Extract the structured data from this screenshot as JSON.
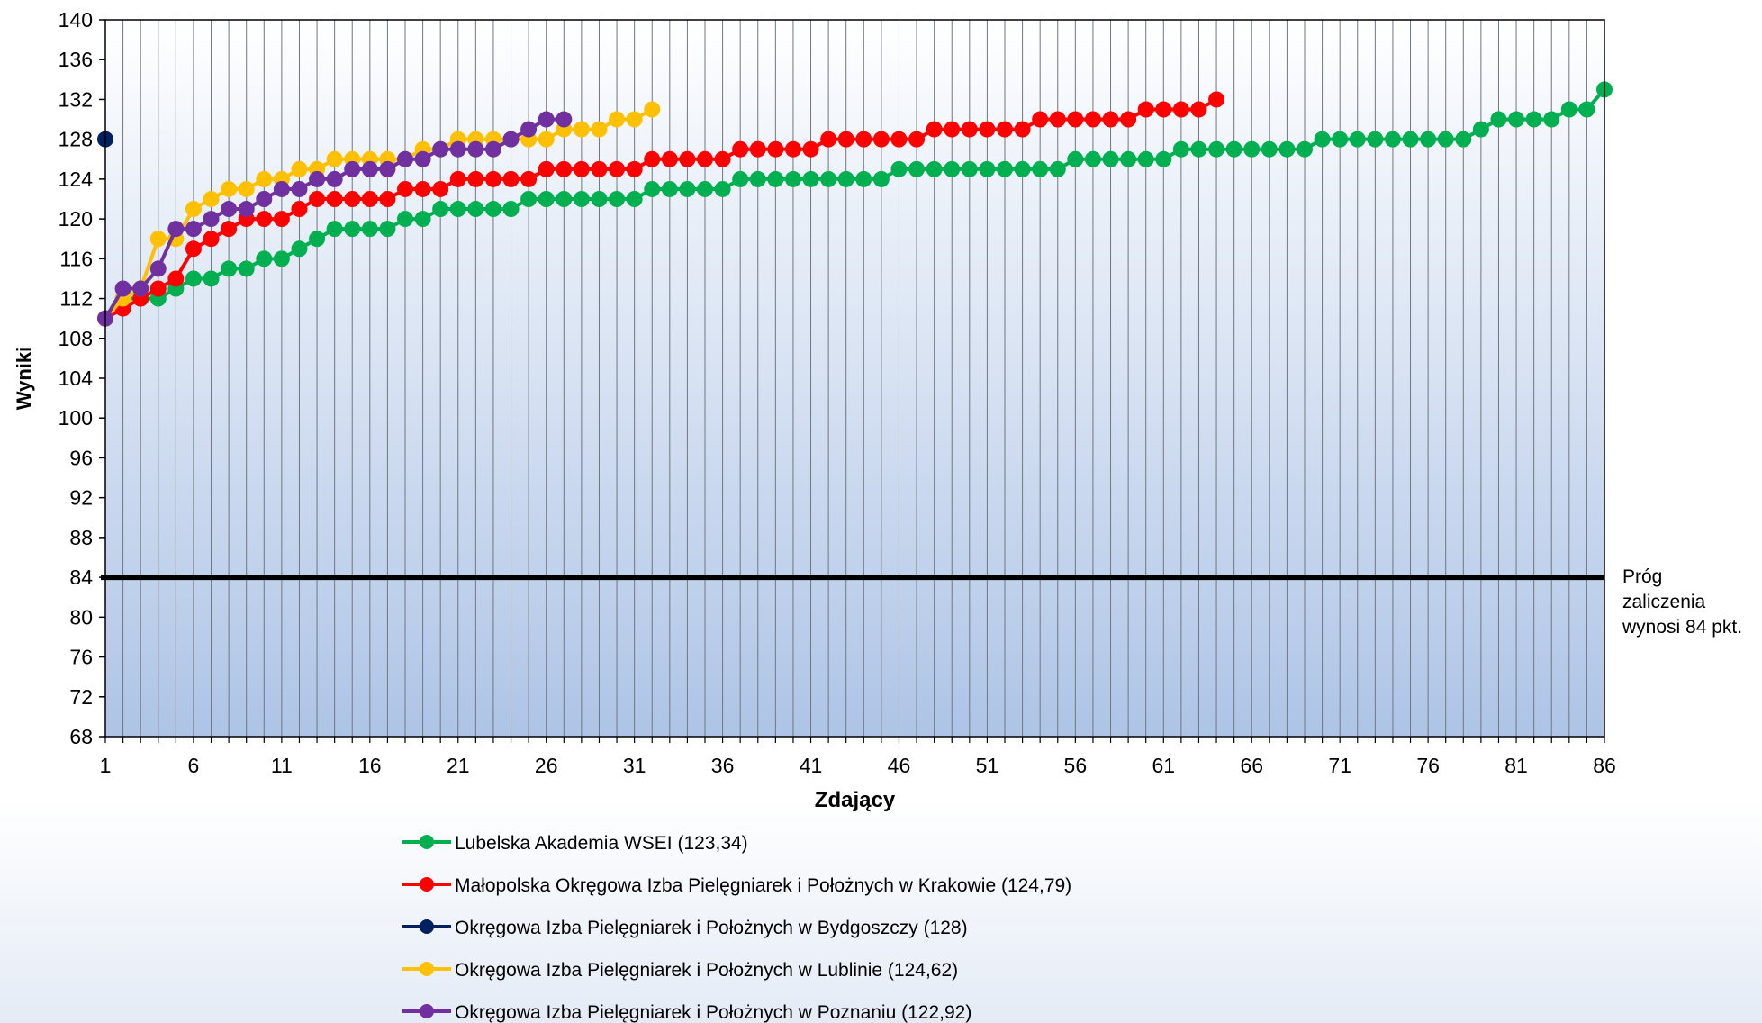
{
  "chart_data": {
    "type": "line",
    "title": "",
    "xlabel": "Zdający",
    "ylabel": "Wyniki",
    "xlim": [
      1,
      86
    ],
    "ylim": [
      68,
      140
    ],
    "x_ticks": [
      1,
      6,
      11,
      16,
      21,
      26,
      31,
      36,
      41,
      46,
      51,
      56,
      61,
      66,
      71,
      76,
      81,
      86
    ],
    "y_ticks": [
      68,
      72,
      76,
      80,
      84,
      88,
      92,
      96,
      100,
      104,
      108,
      112,
      116,
      120,
      124,
      128,
      132,
      136,
      140
    ],
    "vertical_gridlines": true,
    "legend_position": "bottom",
    "threshold": {
      "value": 84,
      "label_lines": [
        "Próg",
        "zaliczenia",
        "wynosi 84 pkt."
      ]
    },
    "series": [
      {
        "name": "Lubelska Akademia WSEI (123,34)",
        "color": "#00b050",
        "values": [
          110,
          112,
          112,
          112,
          113,
          114,
          114,
          115,
          115,
          116,
          116,
          117,
          118,
          119,
          119,
          119,
          119,
          120,
          120,
          121,
          121,
          121,
          121,
          121,
          122,
          122,
          122,
          122,
          122,
          122,
          122,
          123,
          123,
          123,
          123,
          123,
          124,
          124,
          124,
          124,
          124,
          124,
          124,
          124,
          124,
          125,
          125,
          125,
          125,
          125,
          125,
          125,
          125,
          125,
          125,
          126,
          126,
          126,
          126,
          126,
          126,
          127,
          127,
          127,
          127,
          127,
          127,
          127,
          127,
          128,
          128,
          128,
          128,
          128,
          128,
          128,
          128,
          128,
          129,
          130,
          130,
          130,
          130,
          131,
          131,
          133
        ]
      },
      {
        "name": "Małopolska Okręgowa Izba Pielęgniarek i Położnych w Krakowie (124,79)",
        "color": "#ff0000",
        "values": [
          110,
          111,
          112,
          113,
          114,
          117,
          118,
          119,
          120,
          120,
          120,
          121,
          122,
          122,
          122,
          122,
          122,
          123,
          123,
          123,
          124,
          124,
          124,
          124,
          124,
          125,
          125,
          125,
          125,
          125,
          125,
          126,
          126,
          126,
          126,
          126,
          127,
          127,
          127,
          127,
          127,
          128,
          128,
          128,
          128,
          128,
          128,
          129,
          129,
          129,
          129,
          129,
          129,
          130,
          130,
          130,
          130,
          130,
          130,
          131,
          131,
          131,
          131,
          132
        ]
      },
      {
        "name": "Okręgowa Izba Pielęgniarek i Położnych w Bydgoszczy (128)",
        "color": "#002060",
        "values": [
          128
        ]
      },
      {
        "name": "Okręgowa Izba Pielęgniarek i Położnych w Lublinie (124,62)",
        "color": "#ffc000",
        "values": [
          110,
          112,
          113,
          118,
          118,
          121,
          122,
          123,
          123,
          124,
          124,
          125,
          125,
          126,
          126,
          126,
          126,
          126,
          127,
          127,
          128,
          128,
          128,
          128,
          128,
          128,
          129,
          129,
          129,
          130,
          130,
          131
        ]
      },
      {
        "name": "Okręgowa Izba Pielęgniarek i Położnych w Poznaniu (122,92)",
        "color": "#7030a0",
        "values": [
          110,
          113,
          113,
          115,
          119,
          119,
          120,
          121,
          121,
          122,
          123,
          123,
          124,
          124,
          125,
          125,
          125,
          126,
          126,
          127,
          127,
          127,
          127,
          128,
          129,
          130,
          130
        ]
      }
    ]
  }
}
